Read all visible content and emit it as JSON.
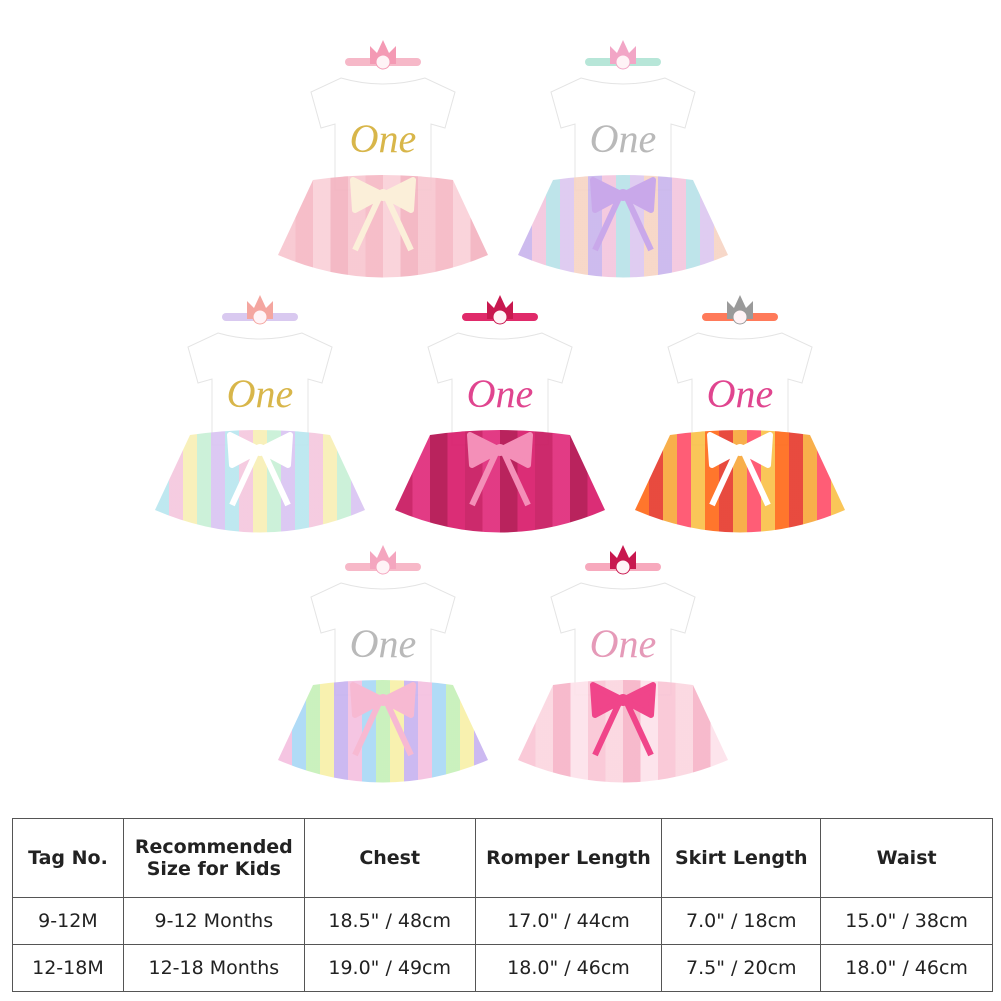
{
  "outfits": [
    {
      "label": "One"
    },
    {
      "label": "One"
    },
    {
      "label": "One"
    },
    {
      "label": "One"
    },
    {
      "label": "One"
    },
    {
      "label": "One"
    },
    {
      "label": "One"
    }
  ],
  "table": {
    "header": [
      "Tag No.",
      "Recommended Size for Kids",
      "Chest",
      "Romper Length",
      "Skirt Length",
      "Waist"
    ],
    "rows": [
      [
        "9-12M",
        "9-12 Months",
        "18.5\" / 48cm",
        "17.0\" / 44cm",
        "7.0\" / 18cm",
        "15.0\" / 38cm"
      ],
      [
        "12-18M",
        "12-18 Months",
        "19.0\" / 49cm",
        "18.0\" / 46cm",
        "7.5\" / 20cm",
        "18.0\" / 46cm"
      ]
    ]
  }
}
